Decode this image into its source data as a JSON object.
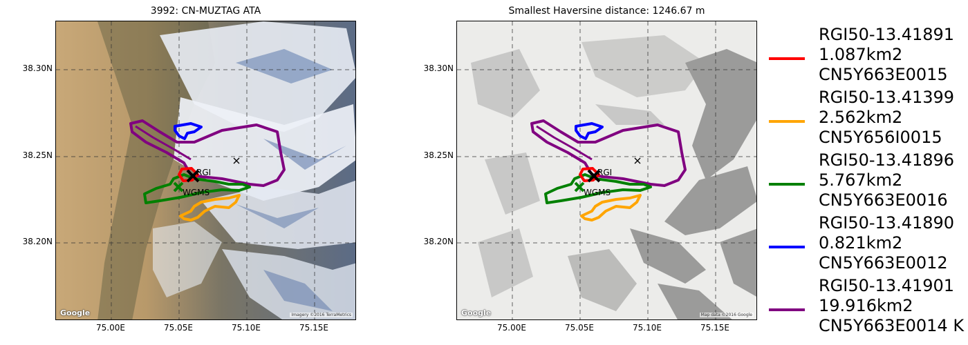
{
  "left_panel": {
    "title": "3992: CN-MUZTAG ATA",
    "attribution": "Imagery ©2016 TerraMetrics",
    "google": "Google"
  },
  "right_panel": {
    "title": "Smallest Haversine distance: 1246.67 m",
    "attribution": "Map data ©2016 Google",
    "google": "Google"
  },
  "axes": {
    "y_ticks": [
      "38.30N",
      "38.25N",
      "38.20N"
    ],
    "x_ticks": [
      "75.00E",
      "75.05E",
      "75.10E",
      "75.15E"
    ]
  },
  "markers": {
    "rgi_label": "RGI",
    "wgms_label": "WGMS"
  },
  "legend": [
    {
      "id": "RGI50-13.41891",
      "area": "1.087km2",
      "code": "CN5Y663E0015",
      "color": "#ff0000"
    },
    {
      "id": "RGI50-13.41399",
      "area": "2.562km2",
      "code": "CN5Y656I0015",
      "color": "#ffa500"
    },
    {
      "id": "RGI50-13.41896",
      "area": "5.767km2",
      "code": "CN5Y663E0016",
      "color": "#008000"
    },
    {
      "id": "RGI50-13.41890",
      "area": "0.821km2",
      "code": "CN5Y663E0012",
      "color": "#0000ff"
    },
    {
      "id": "RGI50-13.41901",
      "area": "19.916km2",
      "code": "CN5Y663E0014 K",
      "color": "#800080"
    }
  ]
}
